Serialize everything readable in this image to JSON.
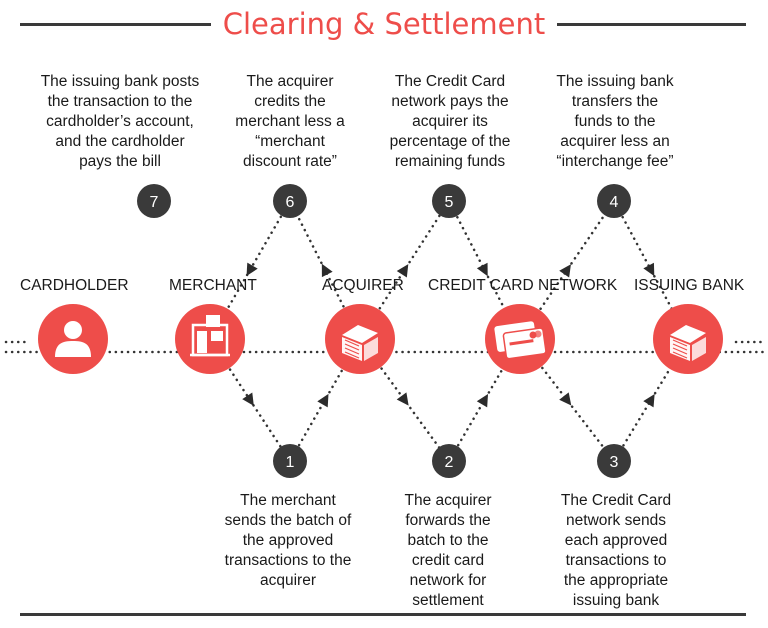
{
  "title": "Clearing & Settlement",
  "entities": [
    {
      "id": "cardholder",
      "label": "CARDHOLDER",
      "icon": "person-icon"
    },
    {
      "id": "merchant",
      "label": "MERCHANT",
      "icon": "storefront-icon"
    },
    {
      "id": "acquirer",
      "label": "ACQUIRER",
      "icon": "bank-building-icon"
    },
    {
      "id": "network",
      "label": "CREDIT CARD NETWORK",
      "icon": "credit-card-icon"
    },
    {
      "id": "issuing",
      "label": "ISSUING BANK",
      "icon": "bank-building-icon"
    }
  ],
  "steps": [
    {
      "n": "1",
      "text": [
        "The merchant",
        "sends the batch of",
        "the approved",
        "transactions to the",
        "acquirer"
      ]
    },
    {
      "n": "2",
      "text": [
        "The acquirer",
        "forwards the",
        "batch to the",
        "credit card",
        "network for",
        "settlement"
      ]
    },
    {
      "n": "3",
      "text": [
        "The Credit Card",
        "network sends",
        "each approved",
        "transactions to",
        "the appropriate",
        "issuing bank"
      ]
    },
    {
      "n": "4",
      "text": [
        "The issuing bank",
        "transfers the",
        "funds to the",
        "acquirer less an",
        "“interchange fee”"
      ]
    },
    {
      "n": "5",
      "text": [
        "The Credit Card",
        "network pays the",
        "acquirer its",
        "percentage of the",
        "remaining funds"
      ]
    },
    {
      "n": "6",
      "text": [
        "The acquirer",
        "credits the",
        "merchant less a",
        "“merchant",
        "discount rate”"
      ]
    },
    {
      "n": "7",
      "text": [
        "The issuing bank posts",
        "the transaction to the",
        "cardholder’s account,",
        "and the cardholder",
        "pays the bill"
      ]
    }
  ],
  "colors": {
    "accent": "#ee4d4a",
    "badge": "#3a3a3a",
    "rule": "#3a3a3a"
  }
}
